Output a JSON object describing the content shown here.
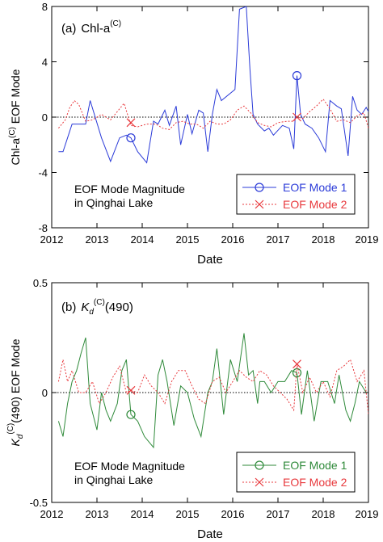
{
  "chart_data": [
    {
      "type": "line",
      "panel_tag": "(a)",
      "title_main": "Chl-a",
      "title_sup": "(C)",
      "ylabel_main": "Chl-a",
      "ylabel_sup": "(C)",
      "ylabel_rest": " EOF Mode",
      "xlabel": "Date",
      "xlim": [
        2012,
        2019
      ],
      "ylim": [
        -8,
        8
      ],
      "xticks": [
        2012,
        2013,
        2014,
        2015,
        2016,
        2017,
        2018,
        2019
      ],
      "xtick_labels": [
        "2012",
        "2013",
        "2014",
        "2015",
        "2016",
        "2017",
        "2018",
        "2019"
      ],
      "yticks": [
        -8,
        -4,
        0,
        4,
        8
      ],
      "ytick_labels": [
        "-8",
        "-4",
        "0",
        "4",
        "8"
      ],
      "annotation_lines": [
        "EOF Mode Magnitude",
        "in Qinghai Lake"
      ],
      "legend_position": "bottom-right",
      "series": [
        {
          "name": "EOF Mode 1",
          "color": "#2b3bd8",
          "dash": "solid",
          "marker": "circle",
          "marker_points": [
            [
              2013.75,
              -1.5
            ],
            [
              2017.42,
              3.0
            ]
          ],
          "x": [
            2012.15,
            2012.25,
            2012.35,
            2012.45,
            2012.55,
            2012.65,
            2012.75,
            2012.85,
            2013.1,
            2013.3,
            2013.5,
            2013.65,
            2013.75,
            2013.9,
            2014.1,
            2014.25,
            2014.35,
            2014.5,
            2014.6,
            2014.75,
            2014.85,
            2015.0,
            2015.1,
            2015.25,
            2015.35,
            2015.45,
            2015.55,
            2015.65,
            2015.75,
            2016.05,
            2016.15,
            2016.3,
            2016.38,
            2016.45,
            2016.55,
            2016.7,
            2016.8,
            2016.9,
            2017.1,
            2017.25,
            2017.35,
            2017.42,
            2017.5,
            2017.6,
            2017.75,
            2017.9,
            2018.05,
            2018.15,
            2018.3,
            2018.4,
            2018.55,
            2018.65,
            2018.75,
            2018.85,
            2018.95,
            2019.0
          ],
          "y": [
            -2.5,
            -2.5,
            -1.5,
            -0.5,
            -0.5,
            -0.5,
            -0.5,
            1.2,
            -1.5,
            -3.2,
            -1.5,
            -1.3,
            -1.5,
            -2.5,
            -3.3,
            -0.3,
            -0.5,
            0.5,
            -0.6,
            0.8,
            -2.0,
            0.2,
            -1.2,
            0.5,
            0.3,
            -2.5,
            0.2,
            2.0,
            1.2,
            2.0,
            7.8,
            8.0,
            3.5,
            0.2,
            -0.5,
            -1.0,
            -0.8,
            -1.3,
            -0.6,
            -0.8,
            -2.3,
            3.0,
            0.2,
            -0.5,
            -0.8,
            -1.5,
            -2.5,
            1.2,
            0.8,
            0.6,
            -2.8,
            1.5,
            0.5,
            0.2,
            0.7,
            0.4
          ]
        },
        {
          "name": "EOF Mode 2",
          "color": "#e8393d",
          "dash": "dotted",
          "marker": "x",
          "marker_points": [
            [
              2013.75,
              -0.4
            ],
            [
              2017.42,
              0.0
            ]
          ],
          "x": [
            2012.15,
            2012.3,
            2012.4,
            2012.5,
            2012.6,
            2012.75,
            2012.9,
            2013.1,
            2013.3,
            2013.5,
            2013.6,
            2013.75,
            2013.9,
            2014.1,
            2014.3,
            2014.45,
            2014.6,
            2014.75,
            2014.9,
            2015.05,
            2015.2,
            2015.35,
            2015.5,
            2015.65,
            2015.8,
            2015.95,
            2016.1,
            2016.25,
            2016.4,
            2016.55,
            2016.7,
            2016.85,
            2017.0,
            2017.2,
            2017.35,
            2017.42,
            2017.55,
            2017.7,
            2017.85,
            2018.0,
            2018.15,
            2018.3,
            2018.45,
            2018.6,
            2018.75,
            2018.9,
            2019.0
          ],
          "y": [
            -0.8,
            -0.2,
            0.7,
            1.2,
            0.9,
            -0.3,
            -0.2,
            0.2,
            -0.2,
            0.6,
            1.0,
            -0.6,
            -0.7,
            -0.5,
            -0.5,
            -0.8,
            -0.9,
            -0.4,
            -0.3,
            -0.5,
            -0.5,
            -0.8,
            -0.3,
            -0.5,
            -0.5,
            -0.2,
            0.5,
            0.8,
            0.3,
            -0.4,
            -0.6,
            -0.7,
            -0.4,
            -0.3,
            -0.3,
            0.0,
            -0.1,
            0.4,
            0.8,
            1.3,
            0.6,
            -0.3,
            -0.2,
            -0.4,
            0.1,
            0.3,
            -0.8
          ]
        }
      ]
    },
    {
      "type": "line",
      "panel_tag": "(b)",
      "title_main": "K",
      "title_sub": "d",
      "title_sup": "(C)",
      "title_rest": "(490)",
      "ylabel_main": "K",
      "ylabel_sub": "d",
      "ylabel_sup": "(C)",
      "ylabel_rest": "(490) EOF Mode",
      "xlabel": "Date",
      "xlim": [
        2012,
        2019
      ],
      "ylim": [
        -0.5,
        0.5
      ],
      "xticks": [
        2012,
        2013,
        2014,
        2015,
        2016,
        2017,
        2018,
        2019
      ],
      "xtick_labels": [
        "2012",
        "2013",
        "2014",
        "2015",
        "2016",
        "2017",
        "2018",
        "2019"
      ],
      "yticks": [
        -0.5,
        0,
        0.5
      ],
      "ytick_labels": [
        "-0.5",
        "0",
        "0.5"
      ],
      "annotation_lines": [
        "EOF Mode Magnitude",
        "in Qinghai Lake"
      ],
      "legend_position": "bottom-right",
      "series": [
        {
          "name": "EOF Mode 1",
          "color": "#2f8a3a",
          "dash": "solid",
          "marker": "circle",
          "marker_points": [
            [
              2013.75,
              -0.1
            ],
            [
              2017.42,
              0.09
            ]
          ],
          "x": [
            2012.15,
            2012.25,
            2012.35,
            2012.45,
            2012.55,
            2012.65,
            2012.75,
            2012.85,
            2013.0,
            2013.1,
            2013.2,
            2013.3,
            2013.45,
            2013.55,
            2013.65,
            2013.75,
            2013.9,
            2014.05,
            2014.25,
            2014.35,
            2014.45,
            2014.55,
            2014.7,
            2014.85,
            2015.0,
            2015.15,
            2015.3,
            2015.45,
            2015.55,
            2015.65,
            2015.8,
            2015.95,
            2016.1,
            2016.25,
            2016.35,
            2016.45,
            2016.55,
            2016.6,
            2016.7,
            2016.85,
            2017.0,
            2017.15,
            2017.3,
            2017.42,
            2017.52,
            2017.65,
            2017.8,
            2017.95,
            2018.1,
            2018.25,
            2018.35,
            2018.5,
            2018.6,
            2018.7,
            2018.8,
            2018.95
          ],
          "y": [
            -0.13,
            -0.2,
            -0.05,
            0.05,
            0.1,
            0.18,
            0.25,
            -0.05,
            -0.17,
            0.0,
            -0.08,
            -0.13,
            -0.05,
            0.1,
            0.15,
            -0.1,
            -0.13,
            -0.2,
            -0.25,
            0.08,
            0.15,
            0.05,
            -0.15,
            0.03,
            0.0,
            -0.12,
            -0.2,
            0.0,
            0.05,
            0.2,
            -0.1,
            0.15,
            0.05,
            0.27,
            0.08,
            0.1,
            -0.05,
            0.05,
            0.05,
            0.0,
            0.05,
            0.05,
            0.1,
            0.09,
            -0.1,
            0.1,
            -0.13,
            0.05,
            0.05,
            -0.05,
            0.08,
            -0.08,
            -0.13,
            -0.05,
            0.05,
            0.0
          ]
        },
        {
          "name": "EOF Mode 2",
          "color": "#e8393d",
          "dash": "dotted",
          "marker": "x",
          "marker_points": [
            [
              2013.75,
              0.01
            ],
            [
              2017.42,
              0.13
            ]
          ],
          "x": [
            2012.15,
            2012.25,
            2012.35,
            2012.45,
            2012.6,
            2012.75,
            2012.9,
            2013.05,
            2013.2,
            2013.35,
            2013.5,
            2013.65,
            2013.75,
            2013.9,
            2014.05,
            2014.2,
            2014.35,
            2014.5,
            2014.65,
            2014.8,
            2014.95,
            2015.1,
            2015.25,
            2015.4,
            2015.55,
            2015.7,
            2015.85,
            2016.0,
            2016.15,
            2016.3,
            2016.45,
            2016.6,
            2016.75,
            2016.9,
            2017.05,
            2017.2,
            2017.35,
            2017.42,
            2017.55,
            2017.7,
            2017.85,
            2018.0,
            2018.15,
            2018.3,
            2018.45,
            2018.6,
            2018.75,
            2018.9,
            2019.0
          ],
          "y": [
            0.05,
            0.15,
            0.05,
            0.1,
            0.0,
            0.0,
            0.05,
            -0.05,
            0.0,
            0.07,
            0.12,
            0.0,
            0.01,
            0.0,
            0.08,
            0.03,
            0.0,
            -0.05,
            0.05,
            0.1,
            0.1,
            0.03,
            -0.03,
            -0.05,
            0.05,
            0.07,
            0.0,
            0.05,
            0.1,
            0.07,
            0.05,
            0.1,
            0.08,
            0.03,
            0.0,
            -0.03,
            -0.08,
            0.13,
            0.0,
            0.07,
            0.0,
            0.05,
            -0.02,
            0.1,
            0.12,
            0.15,
            0.05,
            0.1,
            -0.1
          ]
        }
      ]
    }
  ]
}
